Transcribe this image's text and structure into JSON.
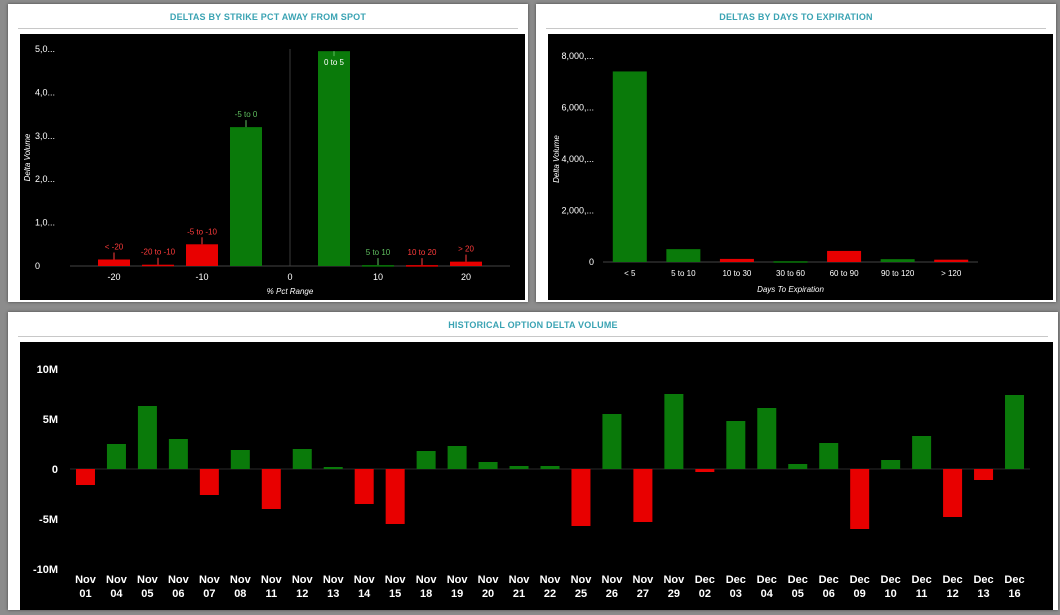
{
  "panels": {
    "strike": {
      "title": "DELTAS BY STRIKE PCT AWAY FROM SPOT"
    },
    "days": {
      "title": "DELTAS BY DAYS TO EXPIRATION"
    },
    "history": {
      "title": "HISTORICAL OPTION DELTA VOLUME"
    }
  },
  "colors": {
    "positive": "#0a7a0a",
    "negative": "#e80000",
    "label_positive": "#5fbf5f",
    "label_negative": "#ff3b3b"
  },
  "chart_data": [
    {
      "type": "bar",
      "title": "DELTAS BY STRIKE PCT AWAY FROM SPOT",
      "xlabel": "% Pct Range",
      "ylabel": "Delta Volume",
      "x_ticks": [
        "-20",
        "-10",
        "0",
        "10",
        "20"
      ],
      "y_ticks": [
        "0",
        "1,0...",
        "2,0...",
        "3,0...",
        "4,0...",
        "5,0..."
      ],
      "ylim": [
        0,
        5000
      ],
      "xlim": [
        -25,
        25
      ],
      "x": [
        -20,
        -15,
        -10,
        -5,
        5,
        10,
        15,
        20
      ],
      "categories": [
        "< -20",
        "-20 to -10",
        "-5 to -10",
        "-5 to 0",
        "0 to 5",
        "5 to 10",
        "10 to 20",
        "> 20"
      ],
      "values": [
        150,
        30,
        500,
        3200,
        4950,
        20,
        20,
        100
      ],
      "signs": [
        "neg",
        "neg",
        "neg",
        "pos",
        "pos",
        "pos",
        "neg",
        "neg"
      ]
    },
    {
      "type": "bar",
      "title": "DELTAS BY DAYS TO EXPIRATION",
      "xlabel": "Days To Expiration",
      "ylabel": "Delta Volume",
      "y_ticks": [
        "0",
        "2,000,...",
        "4,000,...",
        "6,000,...",
        "8,000,..."
      ],
      "ylim": [
        0,
        8000
      ],
      "categories": [
        "< 5",
        "5 to 10",
        "10 to 30",
        "30 to 60",
        "60 to 90",
        "90 to 120",
        "> 120"
      ],
      "values": [
        7400,
        500,
        120,
        30,
        430,
        110,
        90
      ],
      "signs": [
        "pos",
        "pos",
        "neg",
        "pos",
        "neg",
        "pos",
        "neg"
      ]
    },
    {
      "type": "bar",
      "title": "HISTORICAL OPTION DELTA VOLUME",
      "y_ticks": [
        "10M",
        "5M",
        "0",
        "-5M",
        "-10M"
      ],
      "ylim": [
        -10,
        10
      ],
      "categories": [
        [
          "Nov",
          "01"
        ],
        [
          "Nov",
          "04"
        ],
        [
          "Nov",
          "05"
        ],
        [
          "Nov",
          "06"
        ],
        [
          "Nov",
          "07"
        ],
        [
          "Nov",
          "08"
        ],
        [
          "Nov",
          "11"
        ],
        [
          "Nov",
          "12"
        ],
        [
          "Nov",
          "13"
        ],
        [
          "Nov",
          "14"
        ],
        [
          "Nov",
          "15"
        ],
        [
          "Nov",
          "18"
        ],
        [
          "Nov",
          "19"
        ],
        [
          "Nov",
          "20"
        ],
        [
          "Nov",
          "21"
        ],
        [
          "Nov",
          "22"
        ],
        [
          "Nov",
          "25"
        ],
        [
          "Nov",
          "26"
        ],
        [
          "Nov",
          "27"
        ],
        [
          "Nov",
          "29"
        ],
        [
          "Dec",
          "02"
        ],
        [
          "Dec",
          "03"
        ],
        [
          "Dec",
          "04"
        ],
        [
          "Dec",
          "05"
        ],
        [
          "Dec",
          "06"
        ],
        [
          "Dec",
          "09"
        ],
        [
          "Dec",
          "10"
        ],
        [
          "Dec",
          "11"
        ],
        [
          "Dec",
          "12"
        ],
        [
          "Dec",
          "13"
        ],
        [
          "Dec",
          "16"
        ]
      ],
      "values": [
        -1.6,
        2.5,
        6.3,
        3.0,
        -2.6,
        1.9,
        -4.0,
        2.0,
        0.2,
        -3.5,
        -5.5,
        1.8,
        2.3,
        0.7,
        0.3,
        0.3,
        -5.7,
        5.5,
        -5.3,
        7.5,
        -0.3,
        4.8,
        6.1,
        0.5,
        2.6,
        -6.0,
        0.9,
        3.3,
        -4.8,
        -1.1,
        7.4
      ]
    }
  ]
}
